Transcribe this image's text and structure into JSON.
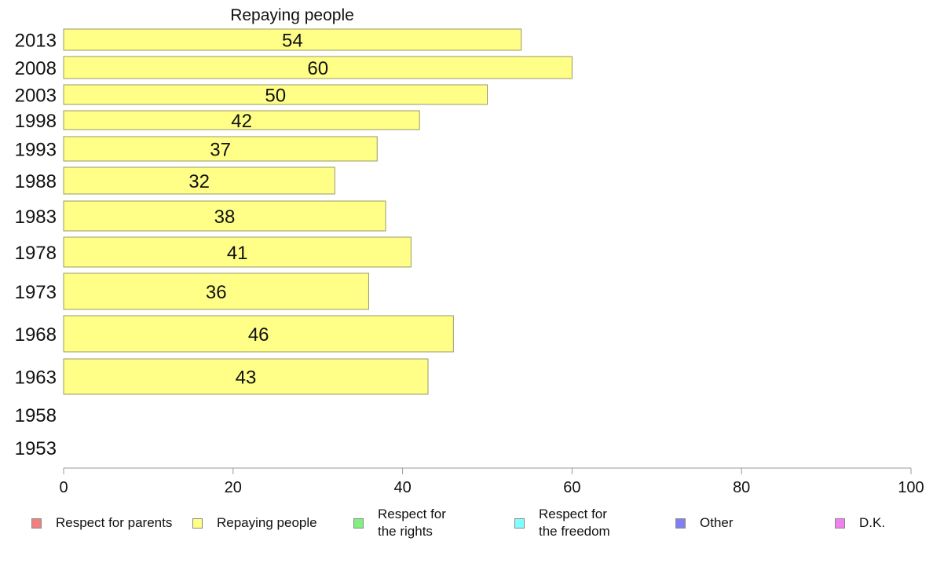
{
  "chart_data": {
    "type": "bar",
    "orientation": "horizontal",
    "title": "Repaying people",
    "categories": [
      "2013",
      "2008",
      "2003",
      "1998",
      "1993",
      "1988",
      "1983",
      "1978",
      "1973",
      "1968",
      "1963",
      "1958",
      "1953"
    ],
    "values": [
      54,
      60,
      50,
      42,
      37,
      32,
      38,
      41,
      36,
      46,
      43,
      null,
      null
    ],
    "xlim": [
      0,
      100
    ],
    "xticks": [
      "0",
      "20",
      "40",
      "60",
      "80",
      "100"
    ],
    "bar_color": "#ffff88",
    "bar_border": "#999966",
    "legend_position": "bottom",
    "legend": [
      {
        "label": "Respect for parents",
        "color": "#f08080"
      },
      {
        "label": "Repaying people",
        "color": "#ffff88"
      },
      {
        "label": "Respect for\nthe rights",
        "color": "#80f080"
      },
      {
        "label": "Respect for\nthe freedom",
        "color": "#80ffff"
      },
      {
        "label": "Other",
        "color": "#8080f0"
      },
      {
        "label": "D.K.",
        "color": "#f080f0"
      }
    ]
  }
}
